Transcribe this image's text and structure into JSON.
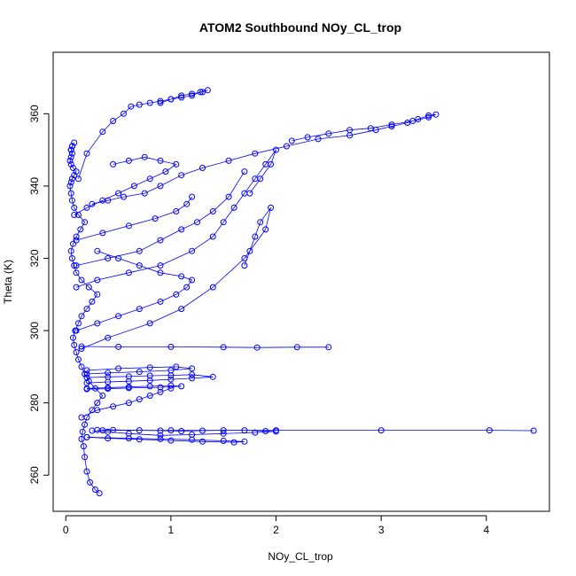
{
  "chart_data": {
    "type": "scatter",
    "title": "ATOM2 Southbound NOy_CL_trop",
    "xlabel": "NOy_CL_trop",
    "ylabel": "Theta (K)",
    "xlim": [
      -0.12,
      4.6
    ],
    "ylim": [
      250,
      377
    ],
    "xticks": [
      0,
      1,
      2,
      3,
      4
    ],
    "yticks": [
      260,
      280,
      300,
      320,
      340,
      360
    ],
    "grid": false,
    "legend": "none",
    "marker": "open-circle",
    "connected": true,
    "color": "#0000ff",
    "series": [
      {
        "x": [
          0.32,
          0.28,
          0.23,
          0.2,
          0.18,
          0.17,
          0.15,
          0.16,
          0.18,
          0.2,
          0.25,
          0.3,
          0.35,
          0.28,
          0.22,
          0.18,
          0.15,
          0.12,
          0.1,
          0.08,
          0.07,
          0.09,
          0.12,
          0.15,
          0.2,
          0.25,
          0.3,
          0.22,
          0.15,
          0.1,
          0.08,
          0.06,
          0.05,
          0.07,
          0.1,
          0.14,
          0.18,
          0.12,
          0.08,
          0.06,
          0.05,
          0.04,
          0.05,
          0.06,
          0.08,
          0.1,
          0.07,
          0.05,
          0.04,
          0.05,
          0.06,
          0.05,
          0.06,
          0.08,
          0.06,
          0.05
        ],
        "y": [
          255,
          256,
          258,
          261,
          265,
          268,
          270,
          272,
          274,
          276,
          278,
          280,
          282,
          284,
          286,
          288,
          290,
          292,
          294,
          296,
          298,
          300,
          302,
          304,
          306,
          308,
          310,
          312,
          314,
          316,
          318,
          320,
          322,
          324,
          326,
          328,
          330,
          332,
          334,
          336,
          338,
          340,
          341,
          342,
          343,
          344,
          345,
          346,
          347,
          348,
          349,
          350,
          351,
          352,
          351,
          350
        ]
      },
      {
        "x": [
          0.3,
          0.45,
          0.7,
          0.9,
          1.1,
          1.3,
          1.5,
          1.7,
          1.9,
          2.0,
          1.8,
          1.5,
          1.2,
          0.9,
          0.6,
          0.4,
          0.25
        ],
        "y": [
          272.5,
          272.5,
          272.4,
          272.3,
          272.2,
          272.3,
          272.4,
          272.4,
          272.2,
          272.1,
          271.8,
          271.5,
          271.2,
          271.0,
          271.5,
          272.0,
          272.3
        ]
      },
      {
        "x": [
          0.35,
          1.0,
          2.0,
          3.0,
          4.03,
          4.45
        ],
        "y": [
          272.4,
          272.4,
          272.4,
          272.4,
          272.4,
          272.3
        ]
      },
      {
        "x": [
          0.2,
          0.6,
          0.9,
          1.2,
          1.5,
          1.7,
          1.6,
          1.3,
          1.0,
          0.7,
          0.4,
          0.2
        ],
        "y": [
          270.5,
          270.2,
          270.0,
          269.8,
          269.5,
          269.3,
          269.1,
          269.3,
          269.6,
          269.9,
          270.2,
          270.5
        ]
      },
      {
        "x": [
          0.15,
          0.5,
          1.0,
          1.5,
          1.82,
          2.2,
          2.5
        ],
        "y": [
          295.6,
          295.5,
          295.5,
          295.4,
          295.3,
          295.4,
          295.4
        ]
      },
      {
        "x": [
          0.2,
          0.4,
          0.6,
          0.8,
          1.0,
          1.2,
          1.4,
          1.2,
          1.0,
          0.8,
          0.6,
          0.4,
          0.2
        ],
        "y": [
          287.0,
          287.2,
          287.3,
          287.5,
          287.6,
          287.8,
          287.2,
          286.8,
          286.5,
          286.2,
          286.0,
          285.8,
          285.5
        ]
      },
      {
        "x": [
          0.2,
          0.5,
          0.8,
          1.05,
          1.2,
          1.0,
          0.7,
          0.4,
          0.2
        ],
        "y": [
          289.0,
          289.5,
          289.8,
          290.0,
          289.5,
          289.0,
          288.6,
          288.3,
          288.0
        ]
      },
      {
        "x": [
          0.2,
          0.4,
          0.6,
          0.8,
          1.0,
          1.1,
          0.9,
          0.6,
          0.4,
          0.2
        ],
        "y": [
          284.0,
          284.2,
          284.4,
          284.6,
          284.8,
          284.6,
          284.3,
          284.1,
          283.9,
          283.8
        ]
      },
      {
        "x": [
          0.25,
          0.4,
          0.55,
          0.75,
          0.9,
          1.1,
          1.3,
          1.55,
          1.8,
          2.1,
          2.4,
          2.7,
          2.95,
          3.1,
          3.25,
          3.35,
          3.45,
          3.52,
          3.45,
          3.3,
          3.1,
          2.9,
          2.7,
          2.5,
          2.3,
          2.15
        ],
        "y": [
          335,
          336,
          337,
          338,
          340,
          343,
          345,
          347,
          349,
          351,
          353,
          354,
          355.5,
          356.5,
          357.5,
          358.5,
          359.5,
          359.8,
          359.0,
          358.0,
          357.0,
          356.0,
          355.5,
          354.5,
          353.5,
          352.5
        ]
      },
      {
        "x": [
          0.12,
          0.2,
          0.35,
          0.45,
          0.55,
          0.62,
          0.7,
          0.8,
          0.9,
          1.0,
          1.1,
          1.2,
          1.28,
          1.35,
          1.3,
          1.2,
          1.1,
          1.0,
          0.9
        ],
        "y": [
          342,
          349,
          355,
          358,
          360,
          362,
          362.5,
          363,
          363.5,
          364,
          364.5,
          365,
          366,
          366.5,
          366,
          365.5,
          365,
          364,
          363
        ]
      },
      {
        "x": [
          0.1,
          0.3,
          0.6,
          0.9,
          1.2,
          1.4,
          1.5,
          1.6,
          1.7,
          1.8,
          1.9,
          2.0,
          1.95,
          1.85,
          1.75
        ],
        "y": [
          312,
          314,
          316,
          318,
          322,
          326,
          330,
          334,
          338,
          342,
          346,
          350,
          346,
          342,
          338
        ]
      },
      {
        "x": [
          0.15,
          0.4,
          0.8,
          1.1,
          1.4,
          1.7,
          1.9,
          1.95,
          1.85,
          1.8,
          1.75,
          1.7
        ],
        "y": [
          295,
          298,
          302,
          306,
          312,
          320,
          328,
          334,
          330,
          326,
          322,
          318
        ]
      },
      {
        "x": [
          0.1,
          0.4,
          0.7,
          0.9,
          1.1,
          1.25,
          1.4,
          1.55,
          1.7
        ],
        "y": [
          318,
          320,
          322,
          325,
          328,
          330,
          333,
          337,
          344
        ]
      },
      {
        "x": [
          0.1,
          0.35,
          0.6,
          0.85,
          1.05,
          1.15,
          1.2
        ],
        "y": [
          325,
          327,
          329,
          331,
          333,
          335,
          337
        ]
      },
      {
        "x": [
          0.1,
          0.3,
          0.5,
          0.7,
          0.9,
          1.05,
          1.15,
          1.2,
          1.1,
          0.9,
          0.7,
          0.5,
          0.3
        ],
        "y": [
          300,
          302,
          304,
          306,
          308,
          310,
          312,
          314,
          315,
          316,
          318,
          320,
          322
        ]
      },
      {
        "x": [
          0.08,
          0.2,
          0.35,
          0.5,
          0.65,
          0.8,
          0.95,
          1.05,
          0.9,
          0.75,
          0.6,
          0.45
        ],
        "y": [
          332,
          334,
          336,
          338,
          340,
          342,
          344,
          346,
          347,
          348,
          347,
          346
        ]
      },
      {
        "x": [
          0.15,
          0.3,
          0.45,
          0.6,
          0.7,
          0.8,
          0.9,
          1.0
        ],
        "y": [
          276,
          278,
          279,
          280,
          281,
          282,
          283,
          284
        ]
      }
    ]
  }
}
